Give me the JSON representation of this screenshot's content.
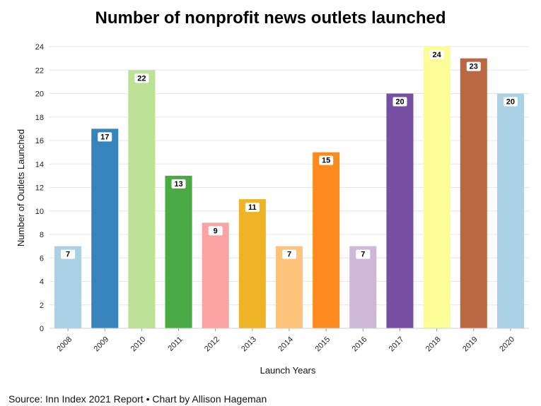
{
  "chart_data": {
    "type": "bar",
    "title": "Number of nonprofit news outlets launched",
    "xlabel": "Launch Years",
    "ylabel": "Number of Outlets Launched",
    "categories": [
      "2008",
      "2009",
      "2010",
      "2011",
      "2012",
      "2013",
      "2014",
      "2015",
      "2016",
      "2017",
      "2018",
      "2019",
      "2020"
    ],
    "values": [
      7,
      17,
      22,
      13,
      9,
      11,
      7,
      15,
      7,
      20,
      24,
      23,
      20
    ],
    "colors": [
      "#abd1e5",
      "#3784bc",
      "#bde296",
      "#4aaa43",
      "#f9a3a2",
      "#efb426",
      "#fec47c",
      "#fd8a1d",
      "#cdb8d8",
      "#7850a3",
      "#fdfd98",
      "#ba6841",
      "#abd1e5"
    ],
    "ylim": [
      0,
      24
    ],
    "yticks": [
      0,
      2,
      4,
      6,
      8,
      10,
      12,
      14,
      16,
      18,
      20,
      22,
      24
    ],
    "grid": true,
    "legend": "none",
    "data_labels": true
  },
  "footer": {
    "source": "Source: Inn Index 2021 Report • Chart by Allison Hageman"
  }
}
